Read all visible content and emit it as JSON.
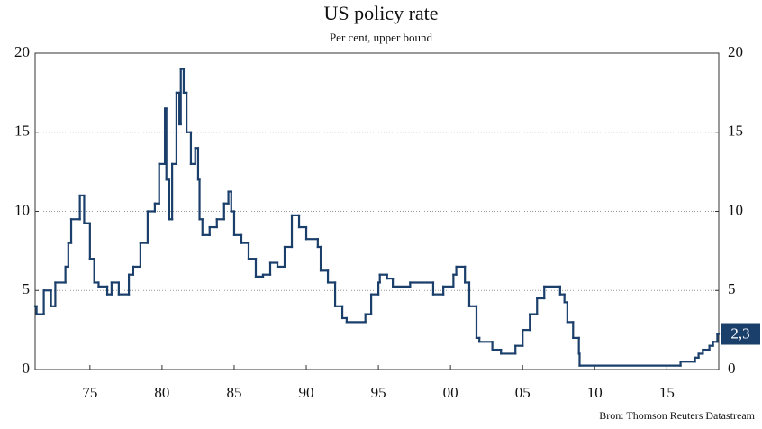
{
  "chart_data": {
    "type": "step",
    "title": "US policy rate",
    "subtitle": "Per cent, upper bound",
    "source": "Bron: Thomson Reuters Datastream",
    "xlim": [
      1971.2,
      2018.6
    ],
    "xticks": [
      {
        "value": 1975,
        "label": "75"
      },
      {
        "value": 1980,
        "label": "80"
      },
      {
        "value": 1985,
        "label": "85"
      },
      {
        "value": 1990,
        "label": "90"
      },
      {
        "value": 1995,
        "label": "95"
      },
      {
        "value": 2000,
        "label": "00"
      },
      {
        "value": 2005,
        "label": "05"
      },
      {
        "value": 2010,
        "label": "10"
      },
      {
        "value": 2015,
        "label": "15"
      }
    ],
    "ylim": [
      0,
      20
    ],
    "yticks": [
      0,
      5,
      10,
      15,
      20
    ],
    "y2lim": [
      0,
      20
    ],
    "y2ticks": [
      0,
      5,
      10,
      15,
      20
    ],
    "grid": true,
    "series": [
      {
        "name": "US policy rate",
        "color": "#1b3f6b",
        "x": [
          1971.2,
          1971.3,
          1971.8,
          1972.3,
          1972.6,
          1973.3,
          1973.5,
          1973.7,
          1974.3,
          1974.6,
          1975.0,
          1975.3,
          1975.6,
          1976.2,
          1976.5,
          1977.0,
          1977.7,
          1978.0,
          1978.5,
          1979.0,
          1979.5,
          1979.8,
          1980.2,
          1980.3,
          1980.5,
          1980.7,
          1981.0,
          1981.2,
          1981.3,
          1981.5,
          1981.7,
          1982.0,
          1982.3,
          1982.5,
          1982.6,
          1982.8,
          1983.3,
          1983.8,
          1984.3,
          1984.6,
          1984.8,
          1985.0,
          1985.5,
          1986.0,
          1986.5,
          1987.0,
          1987.5,
          1988.0,
          1988.5,
          1989.0,
          1989.5,
          1990.0,
          1990.8,
          1991.0,
          1991.5,
          1992.0,
          1992.5,
          1992.8,
          1994.1,
          1994.5,
          1995.0,
          1995.1,
          1995.6,
          1996.0,
          1997.2,
          1998.8,
          1999.5,
          2000.2,
          2000.4,
          2001.0,
          2001.3,
          2001.8,
          2002.0,
          2002.9,
          2003.5,
          2004.5,
          2005.0,
          2005.5,
          2006.0,
          2006.5,
          2007.6,
          2007.9,
          2008.1,
          2008.5,
          2008.9,
          2008.95,
          2015.95,
          2016.95,
          2017.2,
          2017.5,
          2017.95,
          2018.2,
          2018.5
        ],
        "values": [
          4.0,
          3.5,
          5.0,
          4.0,
          5.5,
          6.5,
          8.0,
          9.5,
          11.0,
          9.25,
          7.0,
          5.5,
          5.25,
          4.75,
          5.5,
          4.75,
          6.0,
          6.5,
          8.0,
          10.0,
          10.5,
          13.0,
          16.5,
          12.0,
          9.5,
          13.0,
          17.5,
          15.5,
          19.0,
          17.5,
          15.0,
          13.0,
          14.0,
          12.0,
          9.5,
          8.5,
          9.0,
          9.5,
          10.5,
          11.25,
          10.0,
          8.5,
          8.0,
          7.0,
          5.875,
          6.0,
          6.75,
          6.5,
          7.75,
          9.75,
          9.0,
          8.25,
          7.75,
          6.25,
          5.5,
          4.0,
          3.25,
          3.0,
          3.5,
          4.75,
          5.5,
          6.0,
          5.75,
          5.25,
          5.5,
          4.75,
          5.25,
          6.0,
          6.5,
          5.5,
          4.0,
          2.0,
          1.75,
          1.25,
          1.0,
          1.5,
          2.5,
          3.5,
          4.5,
          5.25,
          4.75,
          4.25,
          3.0,
          2.0,
          1.0,
          0.25,
          0.5,
          0.75,
          1.0,
          1.25,
          1.5,
          1.75,
          2.25
        ]
      }
    ],
    "last_value_label": {
      "value": 2.25,
      "label": "2,3"
    }
  }
}
